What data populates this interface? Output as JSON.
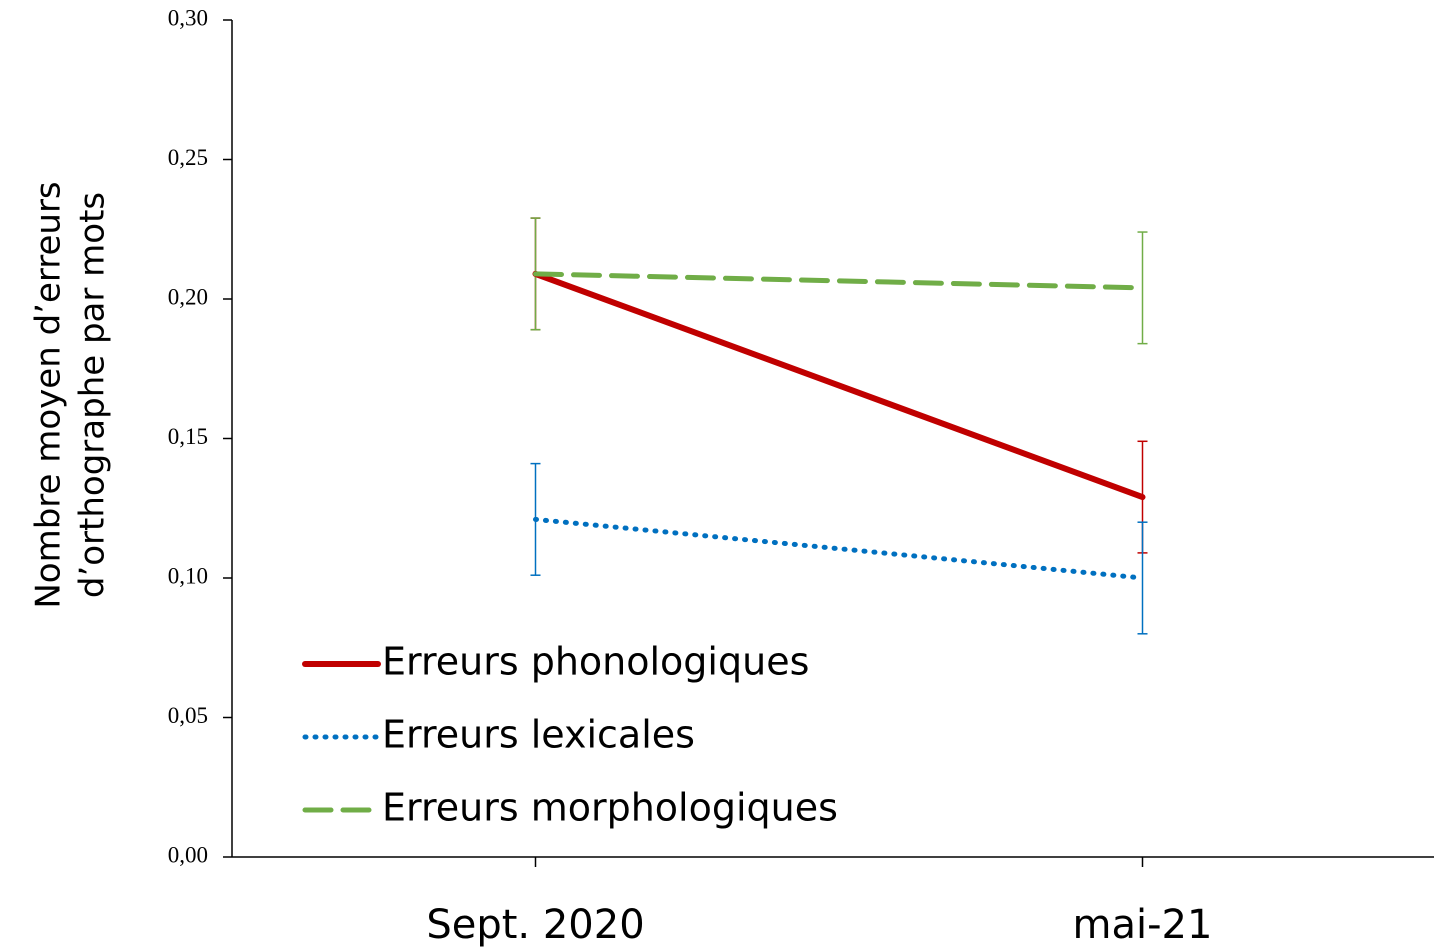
{
  "chart_data": {
    "type": "line",
    "ylabel": [
      "Nombre moyen d’erreurs",
      "d’orthographe par mots"
    ],
    "categories": [
      "Sept. 2020",
      "mai-21"
    ],
    "series": [
      {
        "name": "Erreurs phonologiques",
        "color": "#c00000",
        "style": "solid",
        "values": [
          0.209,
          0.129
        ],
        "errors": [
          0.02,
          0.02
        ]
      },
      {
        "name": "Erreurs lexicales",
        "color": "#0070c0",
        "style": "dotted",
        "values": [
          0.121,
          0.1
        ],
        "errors": [
          0.02,
          0.02
        ]
      },
      {
        "name": "Erreurs morphologiques",
        "color": "#70ad47",
        "style": "dashed",
        "values": [
          0.209,
          0.204
        ],
        "errors": [
          0.02,
          0.02
        ]
      }
    ],
    "ylim": [
      0,
      0.3
    ],
    "yticks": [
      {
        "value": 0,
        "label": "0,00"
      },
      {
        "value": 0.05,
        "label": "0,05"
      },
      {
        "value": 0.1,
        "label": "0,10"
      },
      {
        "value": 0.15,
        "label": "0,15"
      },
      {
        "value": 0.2,
        "label": "0,20"
      },
      {
        "value": 0.25,
        "label": "0,25"
      },
      {
        "value": 0.3,
        "label": "0,30"
      }
    ],
    "legend": "lower left"
  }
}
